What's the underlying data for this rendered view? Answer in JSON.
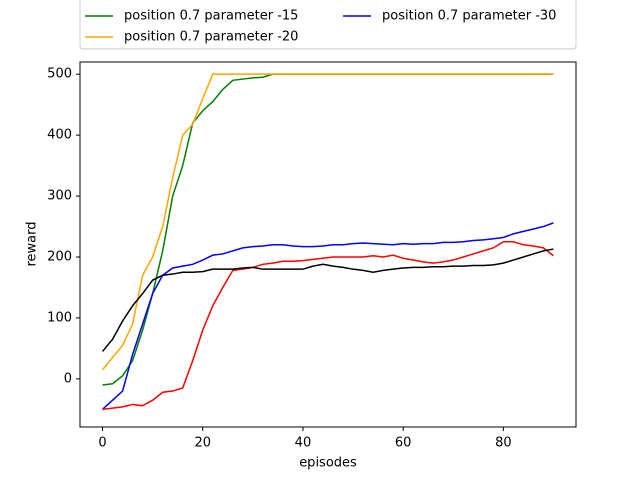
{
  "chart_data": {
    "type": "line",
    "x": [
      0,
      2,
      4,
      6,
      8,
      10,
      12,
      14,
      16,
      18,
      20,
      22,
      24,
      26,
      28,
      30,
      32,
      34,
      36,
      38,
      40,
      42,
      44,
      46,
      48,
      50,
      52,
      54,
      56,
      58,
      60,
      62,
      64,
      66,
      68,
      70,
      72,
      74,
      76,
      78,
      80,
      82,
      84,
      86,
      88,
      90
    ],
    "series": [
      {
        "name": "position 0.7 parameter -15",
        "color": "green",
        "values": [
          -10,
          -8,
          5,
          30,
          80,
          140,
          210,
          300,
          350,
          420,
          440,
          455,
          475,
          490,
          492,
          494,
          495,
          500,
          500,
          500,
          500,
          500,
          500,
          500,
          500,
          500,
          500,
          500,
          500,
          500,
          500,
          500,
          500,
          500,
          500,
          500,
          500,
          500,
          500,
          500,
          500,
          500,
          500,
          500,
          500,
          500
        ]
      },
      {
        "name": "position 0.7 parameter -20",
        "color": "orange",
        "values": [
          15,
          35,
          55,
          90,
          170,
          200,
          250,
          330,
          400,
          418,
          460,
          500,
          500,
          500,
          500,
          500,
          500,
          500,
          500,
          500,
          500,
          500,
          500,
          500,
          500,
          500,
          500,
          500,
          500,
          500,
          500,
          500,
          500,
          500,
          500,
          500,
          500,
          500,
          500,
          500,
          500,
          500,
          500,
          500,
          500,
          500
        ]
      },
      {
        "name": "position 0.7 parameter -30",
        "color": "blue",
        "values": [
          -50,
          -35,
          -20,
          40,
          90,
          140,
          170,
          182,
          185,
          188,
          195,
          203,
          205,
          210,
          215,
          217,
          218,
          220,
          220,
          218,
          217,
          217,
          218,
          220,
          220,
          222,
          223,
          222,
          221,
          220,
          222,
          221,
          222,
          222,
          224,
          224,
          225,
          227,
          228,
          230,
          232,
          238,
          242,
          246,
          250,
          256
        ]
      },
      {
        "color": "red",
        "values": [
          -50,
          -48,
          -46,
          -42,
          -44,
          -35,
          -22,
          -20,
          -15,
          30,
          80,
          120,
          150,
          178,
          180,
          183,
          188,
          190,
          193,
          193,
          194,
          196,
          198,
          200,
          200,
          200,
          200,
          202,
          200,
          203,
          198,
          195,
          192,
          190,
          192,
          195,
          200,
          205,
          210,
          215,
          225,
          225,
          220,
          218,
          215,
          202
        ]
      },
      {
        "color": "black",
        "values": [
          45,
          65,
          95,
          120,
          140,
          162,
          170,
          172,
          175,
          175,
          176,
          180,
          180,
          180,
          182,
          183,
          180,
          180,
          180,
          180,
          180,
          185,
          188,
          185,
          183,
          180,
          178,
          175,
          178,
          180,
          182,
          183,
          183,
          184,
          184,
          185,
          185,
          186,
          186,
          187,
          190,
          195,
          200,
          205,
          210,
          213
        ]
      }
    ],
    "xlabel": "episodes",
    "ylabel": "reward",
    "xlim": [
      -4.5,
      94.5
    ],
    "ylim": [
      -79,
      520
    ],
    "xticks": [
      0,
      20,
      40,
      60,
      80
    ],
    "yticks": [
      0,
      100,
      200,
      300,
      400,
      500
    ],
    "legend": "upper center"
  }
}
